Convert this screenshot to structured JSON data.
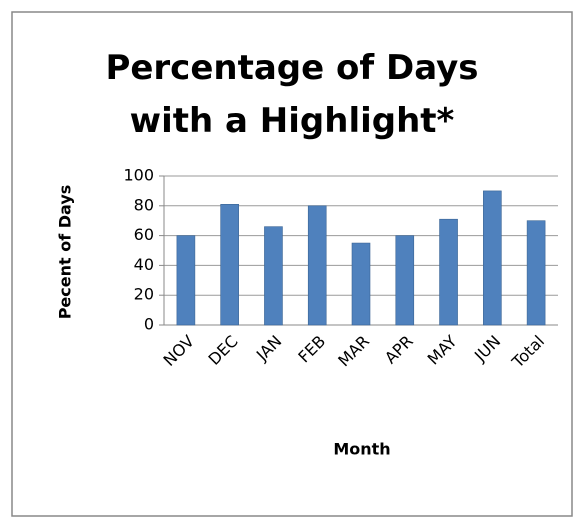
{
  "chart_data": {
    "type": "bar",
    "title": "Percentage of Days with a Highlight*",
    "y_label": "Pecent of Days",
    "x_label": "Month",
    "categories": [
      "NOV",
      "DEC",
      "JAN",
      "FEB",
      "MAR",
      "APR",
      "MAY",
      "JUN",
      "Total"
    ],
    "values": [
      60,
      81,
      66,
      80,
      55,
      60,
      71,
      90,
      70
    ],
    "color": "#4f81bd",
    "ylim": [
      0,
      100
    ],
    "yticks": [
      0,
      20,
      40,
      60,
      80,
      100
    ],
    "grid": true
  }
}
